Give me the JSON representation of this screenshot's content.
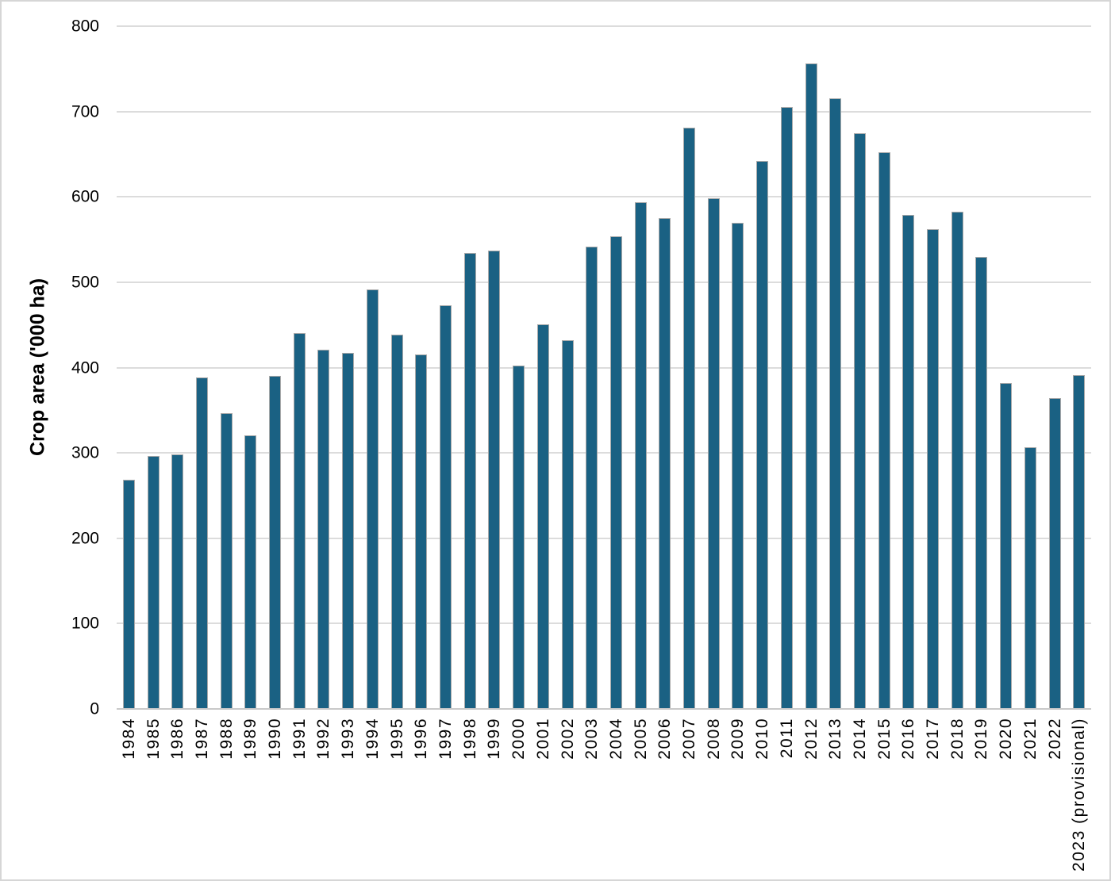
{
  "chart_data": {
    "type": "bar",
    "title": "",
    "xlabel": "",
    "ylabel": "Crop area ('000 ha)",
    "ylim": [
      0,
      800
    ],
    "yticks": [
      0,
      100,
      200,
      300,
      400,
      500,
      600,
      700,
      800
    ],
    "grid": "horizontal gridlines at 100 intervals, light gray",
    "legend_position": "none",
    "bar_color": "#1a6183",
    "bar_border_color": "#a9a9a9",
    "gridline_color": "#dcdcdc",
    "axis_line_color": "#c9c9c9",
    "x_tick_rotation": "90deg bottom-to-top",
    "categories": [
      "1984",
      "1985",
      "1986",
      "1987",
      "1988",
      "1989",
      "1990",
      "1991",
      "1992",
      "1993",
      "1994",
      "1995",
      "1996",
      "1997",
      "1998",
      "1999",
      "2000",
      "2001",
      "2002",
      "2003",
      "2004",
      "2005",
      "2006",
      "2007",
      "2008",
      "2009",
      "2010",
      "2011",
      "2012",
      "2013",
      "2014",
      "2015",
      "2016",
      "2017",
      "2018",
      "2019",
      "2020",
      "2021",
      "2022",
      "2023 (provisional)"
    ],
    "values": [
      269,
      296,
      298,
      388,
      347,
      321,
      390,
      440,
      421,
      417,
      492,
      439,
      415,
      473,
      534,
      537,
      402,
      451,
      432,
      542,
      554,
      594,
      575,
      681,
      598,
      570,
      642,
      705,
      756,
      715,
      675,
      652,
      579,
      562,
      583,
      530,
      382,
      307,
      364,
      391
    ]
  }
}
